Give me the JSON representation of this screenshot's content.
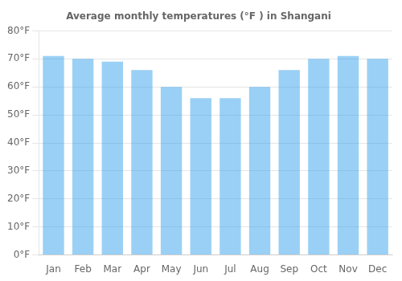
{
  "chart_data": {
    "type": "bar",
    "title": "Average monthly temperatures (°F ) in Shangani",
    "categories": [
      "Jan",
      "Feb",
      "Mar",
      "Apr",
      "May",
      "Jun",
      "Jul",
      "Aug",
      "Sep",
      "Oct",
      "Nov",
      "Dec"
    ],
    "values": [
      71,
      70,
      69,
      66,
      60,
      56,
      56,
      60,
      66,
      70,
      71,
      70
    ],
    "ylim": [
      0,
      80
    ],
    "yticks": [
      {
        "value": 0,
        "label": "0°F"
      },
      {
        "value": 10,
        "label": "10°F"
      },
      {
        "value": 20,
        "label": "20°F"
      },
      {
        "value": 30,
        "label": "30°F"
      },
      {
        "value": 40,
        "label": "40°F"
      },
      {
        "value": 50,
        "label": "50°F"
      },
      {
        "value": 60,
        "label": "60°F"
      },
      {
        "value": 70,
        "label": "70°F"
      },
      {
        "value": 80,
        "label": "80°F"
      }
    ],
    "grid": true
  }
}
